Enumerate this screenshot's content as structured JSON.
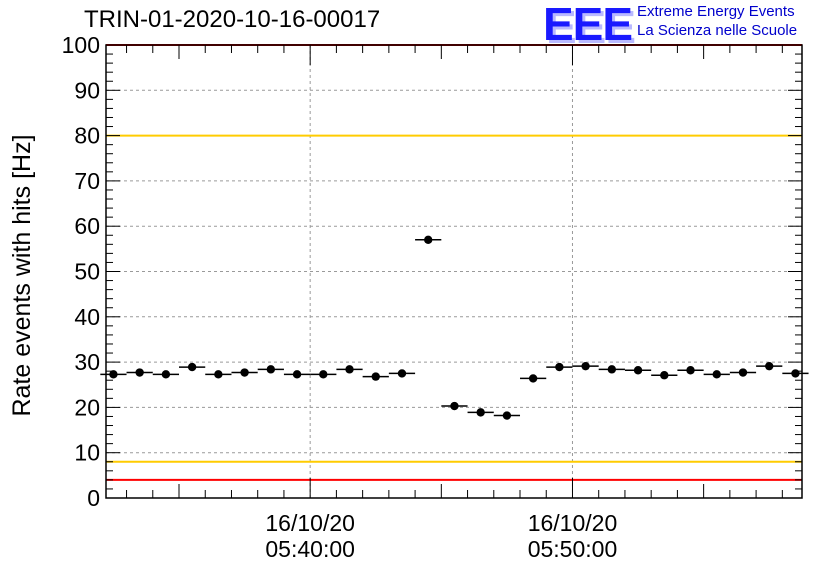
{
  "logo": {
    "mark": "EEE",
    "line1": "Extreme Energy Events",
    "line2": "La Scienza nelle Scuole"
  },
  "chart_data": {
    "type": "scatter",
    "title": "TRIN-01-2020-10-16-00017",
    "ylabel": "Rate events with hits [Hz]",
    "xlabel": "",
    "ylim": [
      0,
      100
    ],
    "yticks": [
      0,
      10,
      20,
      30,
      40,
      50,
      60,
      70,
      80,
      90,
      100
    ],
    "xlim": [
      "2020-10-16 05:32:13",
      "2020-10-16 05:58:45"
    ],
    "xticks": [
      {
        "time": "2020-10-16 05:40:00",
        "label_date": "16/10/20",
        "label_time": "05:40:00"
      },
      {
        "time": "2020-10-16 05:50:00",
        "label_date": "16/10/20",
        "label_time": "05:50:00"
      }
    ],
    "bin_width_seconds": 60,
    "grid": true,
    "reference_lines": [
      {
        "y": 100,
        "color": "#ff0000"
      },
      {
        "y": 80,
        "color": "#ffcc00"
      },
      {
        "y": 8,
        "color": "#ffcc00"
      },
      {
        "y": 4,
        "color": "#ff0000"
      }
    ],
    "series": [
      {
        "marker_color": "#000000",
        "x": [
          "2020-10-16 05:32:30",
          "2020-10-16 05:33:30",
          "2020-10-16 05:34:30",
          "2020-10-16 05:35:30",
          "2020-10-16 05:36:30",
          "2020-10-16 05:37:30",
          "2020-10-16 05:38:30",
          "2020-10-16 05:39:30",
          "2020-10-16 05:40:30",
          "2020-10-16 05:41:30",
          "2020-10-16 05:42:30",
          "2020-10-16 05:43:30",
          "2020-10-16 05:44:30",
          "2020-10-16 05:45:30",
          "2020-10-16 05:46:30",
          "2020-10-16 05:47:30",
          "2020-10-16 05:48:30",
          "2020-10-16 05:49:30",
          "2020-10-16 05:50:30",
          "2020-10-16 05:51:30",
          "2020-10-16 05:52:30",
          "2020-10-16 05:53:30",
          "2020-10-16 05:54:30",
          "2020-10-16 05:55:30",
          "2020-10-16 05:56:30",
          "2020-10-16 05:57:30",
          "2020-10-16 05:58:30"
        ],
        "y": [
          27.3,
          27.7,
          27.3,
          28.9,
          27.3,
          27.7,
          28.4,
          27.3,
          27.3,
          28.4,
          26.8,
          27.5,
          57.0,
          20.3,
          18.9,
          18.2,
          26.4,
          28.9,
          29.1,
          28.4,
          28.2,
          27.1,
          28.2,
          27.3,
          27.7,
          29.1,
          27.5
        ]
      }
    ]
  }
}
